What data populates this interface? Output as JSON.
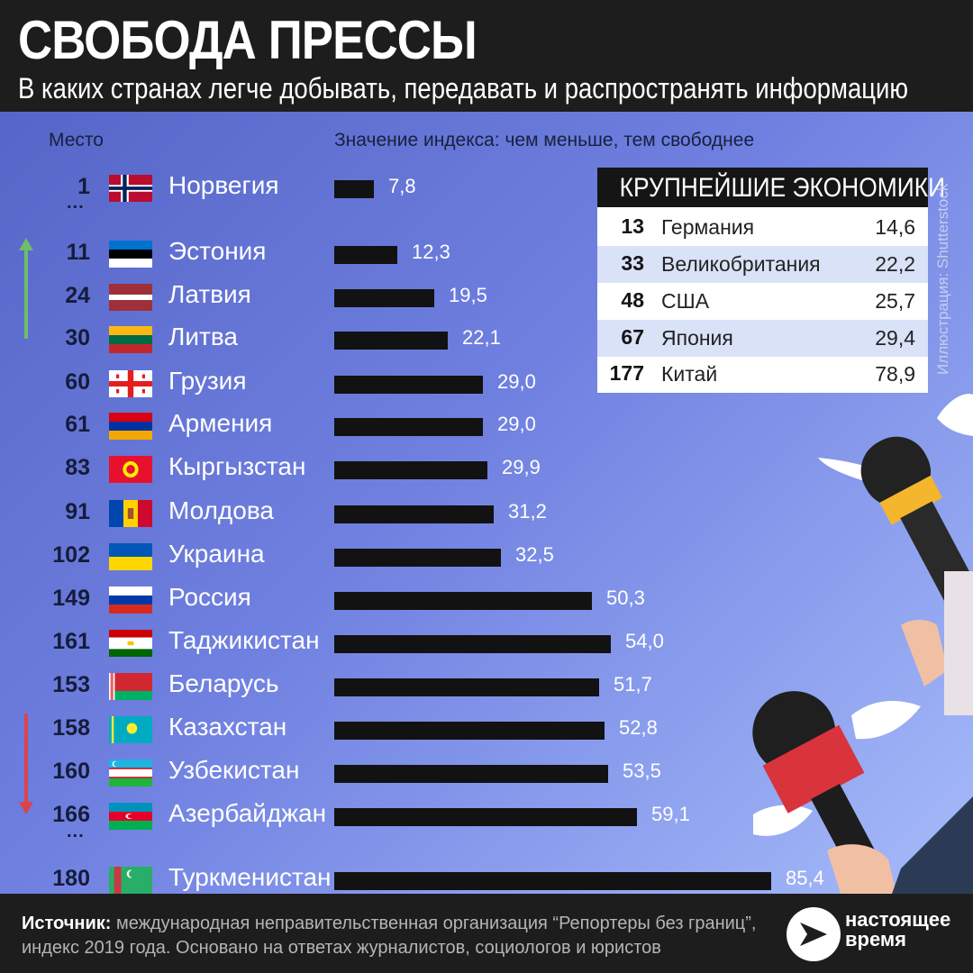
{
  "header": {
    "title": "СВОБОДА ПРЕССЫ",
    "subtitle": "В каких странах легче добывать, передавать и распространять информацию"
  },
  "columns": {
    "rank_label": "Место",
    "value_label": "Значение индекса: чем меньше, тем свободнее"
  },
  "colors": {
    "bar": "#121212",
    "up_arrow": "#6dbd6b",
    "down_arrow": "#d9454a",
    "background_start": "#5666c8",
    "background_end": "#a6bbfa"
  },
  "ellipsis": "...",
  "chart_data": {
    "type": "bar",
    "orientation": "horizontal",
    "ylabel": "Значение индекса: чем меньше, тем свободнее",
    "xlim": [
      0,
      85.4
    ],
    "rows": [
      {
        "rank": "1",
        "country": "Норвегия",
        "value": 7.8,
        "label": "7,8",
        "flag": "norway"
      },
      {
        "rank": "11",
        "country": "Эстония",
        "value": 12.3,
        "label": "12,3",
        "flag": "estonia"
      },
      {
        "rank": "24",
        "country": "Латвия",
        "value": 19.5,
        "label": "19,5",
        "flag": "latvia"
      },
      {
        "rank": "30",
        "country": "Литва",
        "value": 22.1,
        "label": "22,1",
        "flag": "lithuania"
      },
      {
        "rank": "60",
        "country": "Грузия",
        "value": 29.0,
        "label": "29,0",
        "flag": "georgia"
      },
      {
        "rank": "61",
        "country": "Армения",
        "value": 29.0,
        "label": "29,0",
        "flag": "armenia"
      },
      {
        "rank": "83",
        "country": "Кыргызстан",
        "value": 29.9,
        "label": "29,9",
        "flag": "kyrgyzstan"
      },
      {
        "rank": "91",
        "country": "Молдова",
        "value": 31.2,
        "label": "31,2",
        "flag": "moldova"
      },
      {
        "rank": "102",
        "country": "Украина",
        "value": 32.5,
        "label": "32,5",
        "flag": "ukraine"
      },
      {
        "rank": "149",
        "country": "Россия",
        "value": 50.3,
        "label": "50,3",
        "flag": "russia"
      },
      {
        "rank": "161",
        "country": "Таджикистан",
        "value": 54.0,
        "label": "54,0",
        "flag": "tajikistan"
      },
      {
        "rank": "153",
        "country": "Беларусь",
        "value": 51.7,
        "label": "51,7",
        "flag": "belarus"
      },
      {
        "rank": "158",
        "country": "Казахстан",
        "value": 52.8,
        "label": "52,8",
        "flag": "kazakhstan"
      },
      {
        "rank": "160",
        "country": "Узбекистан",
        "value": 53.5,
        "label": "53,5",
        "flag": "uzbekistan"
      },
      {
        "rank": "166",
        "country": "Азербайджан",
        "value": 59.1,
        "label": "59,1",
        "flag": "azerbaijan"
      },
      {
        "rank": "180",
        "country": "Туркменистан",
        "value": 85.4,
        "label": "85,4",
        "flag": "turkmenistan"
      }
    ]
  },
  "economies": {
    "title": "КРУПНЕЙШИЕ ЭКОНОМИКИ",
    "rows": [
      {
        "rank": "13",
        "country": "Германия",
        "value": "14,6"
      },
      {
        "rank": "33",
        "country": "Великобритания",
        "value": "22,2"
      },
      {
        "rank": "48",
        "country": "США",
        "value": "25,7"
      },
      {
        "rank": "67",
        "country": "Япония",
        "value": "29,4"
      },
      {
        "rank": "177",
        "country": "Китай",
        "value": "78,9"
      }
    ]
  },
  "credit": "Иллюстрация: Shutterstock",
  "footer": {
    "source_label": "Источник:",
    "source_text": " международная неправительственная организация “Репортеры без границ”,",
    "source_line2": "индекс 2019 года. Основано на ответах журналистов, социологов и юристов",
    "logo_line1": "настоящее",
    "logo_line2": "время"
  }
}
